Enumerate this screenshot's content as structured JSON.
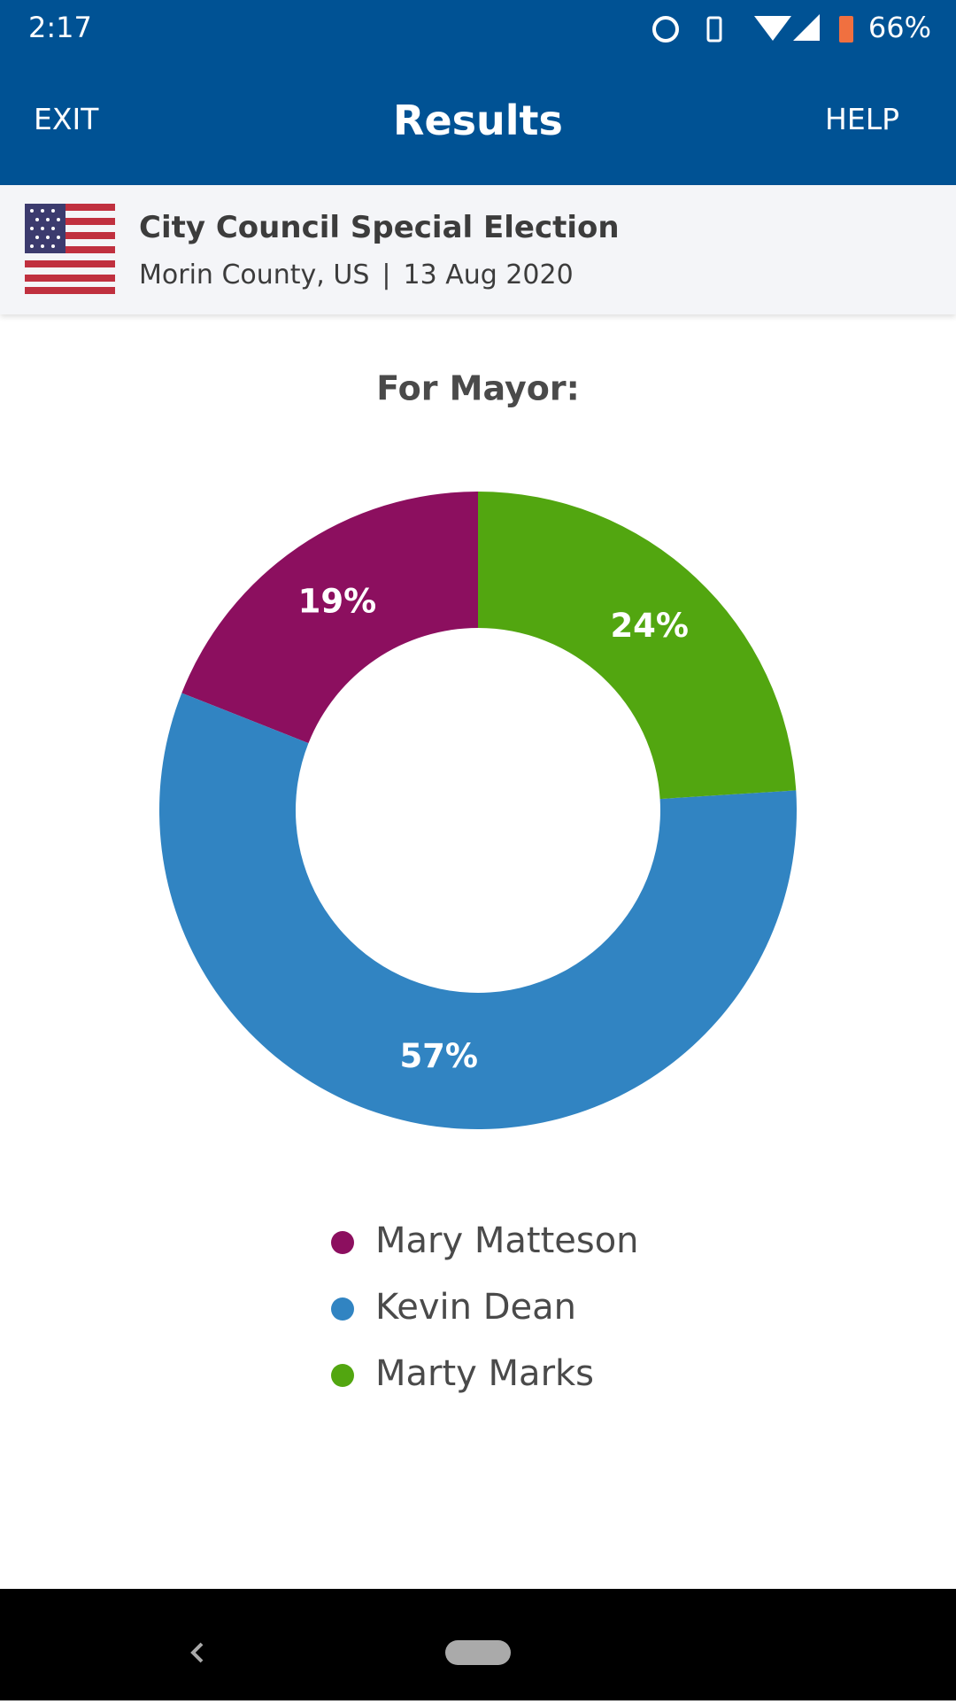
{
  "status_bar": {
    "time": "2:17",
    "battery": "66%"
  },
  "app_bar": {
    "left_action": "EXIT",
    "title": "Results",
    "right_action": "HELP"
  },
  "election": {
    "title": "City Council Special Election",
    "location": "Morin County, US",
    "date": "13 Aug 2020"
  },
  "chart_data": {
    "type": "pie",
    "donut": true,
    "title": "For Mayor:",
    "categories": [
      "Mary Matteson",
      "Kevin Dean",
      "Marty Marks"
    ],
    "values": [
      19,
      57,
      24
    ],
    "value_labels": [
      "19%",
      "57%",
      "24%"
    ],
    "colors": [
      "#8c0f5f",
      "#3184c2",
      "#52a610"
    ]
  }
}
